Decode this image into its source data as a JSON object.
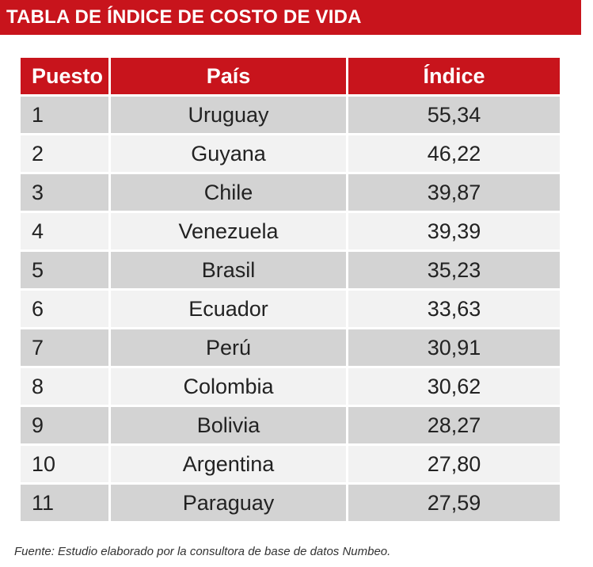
{
  "title": "TABLA DE ÍNDICE DE COSTO DE VIDA",
  "colors": {
    "accent": "#c8141c",
    "row_dark": "#d3d3d3",
    "row_light": "#f2f2f2"
  },
  "table": {
    "headers": [
      "Puesto",
      "País",
      "Índice"
    ],
    "rows": [
      [
        "1",
        "Uruguay",
        "55,34"
      ],
      [
        "2",
        "Guyana",
        "46,22"
      ],
      [
        "3",
        "Chile",
        "39,87"
      ],
      [
        "4",
        "Venezuela",
        "39,39"
      ],
      [
        "5",
        "Brasil",
        "35,23"
      ],
      [
        "6",
        "Ecuador",
        "33,63"
      ],
      [
        "7",
        "Perú",
        "30,91"
      ],
      [
        "8",
        "Colombia",
        "30,62"
      ],
      [
        "9",
        "Bolivia",
        "28,27"
      ],
      [
        "10",
        "Argentina",
        "27,80"
      ],
      [
        "11",
        "Paraguay",
        "27,59"
      ]
    ]
  },
  "source": "Fuente: Estudio elaborado por la consultora de base de datos Numbeo."
}
